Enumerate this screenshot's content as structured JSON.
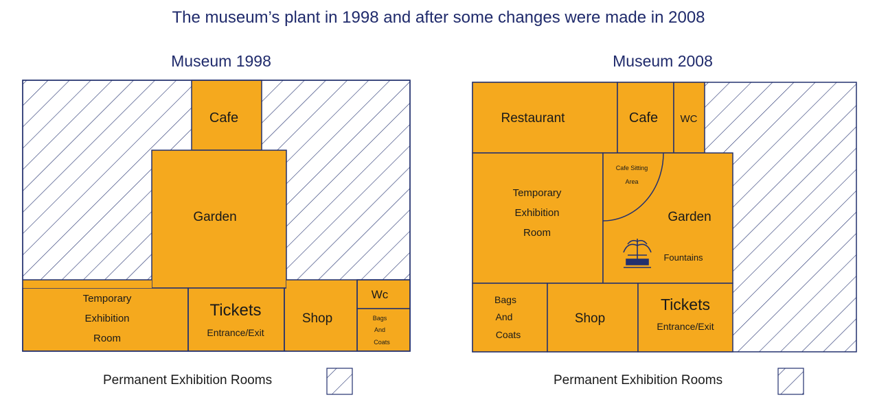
{
  "title": "The museum’s plant in 1998 and after some changes were made in 2008",
  "plans": {
    "p1998": {
      "heading": "Museum 1998",
      "cafe": "Cafe",
      "garden": "Garden",
      "temp_line1": "Temporary",
      "temp_line2": "Exhibition",
      "temp_line3": "Room",
      "tickets": "Tickets",
      "entrance": "Entrance/Exit",
      "shop": "Shop",
      "wc": "Wc",
      "bags_line1": "Bags",
      "bags_line2": "And",
      "bags_line3": "Coats",
      "legend": "Permanent Exhibition Rooms"
    },
    "p2008": {
      "heading": "Museum 2008",
      "restaurant": "Restaurant",
      "cafe": "Cafe",
      "wc": "WC",
      "sitting_line1": "Cafe Sitting",
      "sitting_line2": "Area",
      "garden": "Garden",
      "fountains": "Fountains",
      "temp_line1": "Temporary",
      "temp_line2": "Exhibition",
      "temp_line3": "Room",
      "bags_line1": "Bags",
      "bags_line2": "And",
      "bags_line3": "Coats",
      "shop": "Shop",
      "tickets": "Tickets",
      "entrance": "Entrance/Exit",
      "legend": "Permanent Exhibition Rooms"
    }
  },
  "colors": {
    "room": "#f5a91e",
    "outline": "#22306e",
    "hatch": "#22306e"
  }
}
